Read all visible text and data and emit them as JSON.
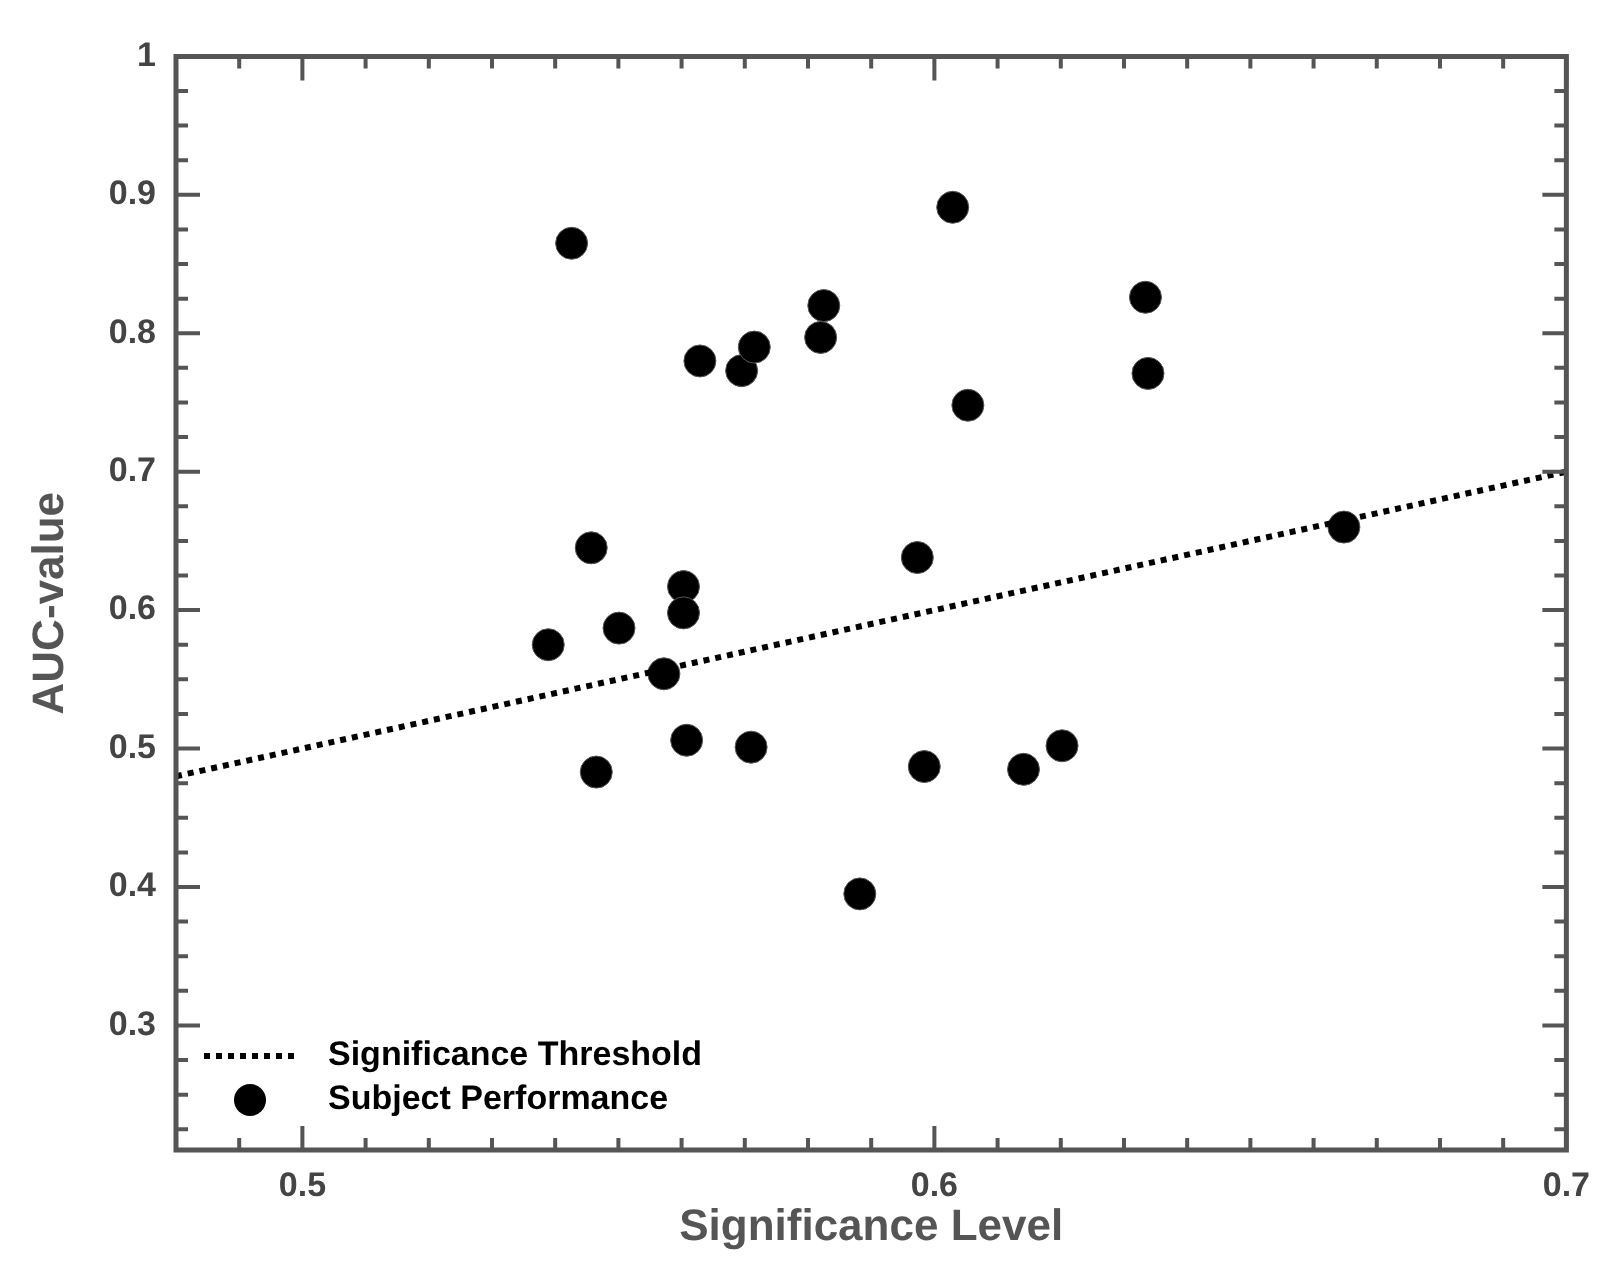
{
  "chart_data": {
    "type": "scatter",
    "xlabel": "Significance Level",
    "ylabel": "AUC-value",
    "xlim": [
      0.48,
      0.7
    ],
    "ylim": [
      0.21,
      1
    ],
    "xticks": [
      {
        "value": 0.48,
        "label": null
      },
      {
        "value": 0.49,
        "label": null
      },
      0.5,
      {
        "value": 0.51,
        "label": null
      },
      {
        "value": 0.52,
        "label": null
      },
      {
        "value": 0.53,
        "label": null
      },
      {
        "value": 0.54,
        "label": null
      },
      {
        "value": 0.55,
        "label": null
      },
      {
        "value": 0.56,
        "label": null
      },
      {
        "value": 0.57,
        "label": null
      },
      {
        "value": 0.58,
        "label": null
      },
      {
        "value": 0.59,
        "label": null
      },
      0.6,
      {
        "value": 0.61,
        "label": null
      },
      {
        "value": 0.62,
        "label": null
      },
      {
        "value": 0.63,
        "label": null
      },
      {
        "value": 0.64,
        "label": null
      },
      {
        "value": 0.65,
        "label": null
      },
      {
        "value": 0.66,
        "label": null
      },
      {
        "value": 0.67,
        "label": null
      },
      {
        "value": 0.68,
        "label": null
      },
      {
        "value": 0.69,
        "label": null
      },
      0.7
    ],
    "yticks": [
      {
        "value": 0.225,
        "label": null
      },
      {
        "value": 0.25,
        "label": null
      },
      {
        "value": 0.275,
        "label": null
      },
      0.3,
      {
        "value": 0.325,
        "label": null
      },
      {
        "value": 0.35,
        "label": null
      },
      {
        "value": 0.375,
        "label": null
      },
      0.4,
      {
        "value": 0.425,
        "label": null
      },
      {
        "value": 0.45,
        "label": null
      },
      {
        "value": 0.475,
        "label": null
      },
      0.5,
      {
        "value": 0.525,
        "label": null
      },
      {
        "value": 0.55,
        "label": null
      },
      {
        "value": 0.575,
        "label": null
      },
      0.6,
      {
        "value": 0.625,
        "label": null
      },
      {
        "value": 0.65,
        "label": null
      },
      {
        "value": 0.675,
        "label": null
      },
      0.7,
      {
        "value": 0.725,
        "label": null
      },
      {
        "value": 0.75,
        "label": null
      },
      {
        "value": 0.775,
        "label": null
      },
      0.8,
      {
        "value": 0.825,
        "label": null
      },
      {
        "value": 0.85,
        "label": null
      },
      {
        "value": 0.875,
        "label": null
      },
      0.9,
      {
        "value": 0.925,
        "label": null
      },
      {
        "value": 0.95,
        "label": null
      },
      {
        "value": 0.975,
        "label": null
      },
      1
    ],
    "grid": false,
    "legend": "bottom left",
    "series": [
      {
        "name": "Significance Threshold",
        "type": "line",
        "color": "#000000",
        "line_style": "dotted",
        "marker": "none",
        "x": [
          0.48,
          0.7
        ],
        "values": [
          0.48,
          0.7
        ]
      },
      {
        "name": "Subject Performance",
        "type": "scatter",
        "color": "#000000",
        "marker": "circle",
        "x": [
          0.5426,
          0.5629,
          0.5695,
          0.5715,
          0.5825,
          0.582,
          0.5457,
          0.5603,
          0.5603,
          0.6029,
          0.6334,
          0.6338,
          0.6053,
          0.5973,
          0.6648,
          0.5389,
          0.5501,
          0.5572,
          0.5465,
          0.5608,
          0.571,
          0.5882,
          0.5984,
          0.6141,
          0.6202
        ],
        "values": [
          0.865,
          0.78,
          0.773,
          0.79,
          0.82,
          0.797,
          0.645,
          0.617,
          0.598,
          0.891,
          0.826,
          0.771,
          0.748,
          0.638,
          0.66,
          0.575,
          0.587,
          0.554,
          0.483,
          0.506,
          0.501,
          0.395,
          0.487,
          0.485,
          0.502
        ]
      }
    ]
  }
}
